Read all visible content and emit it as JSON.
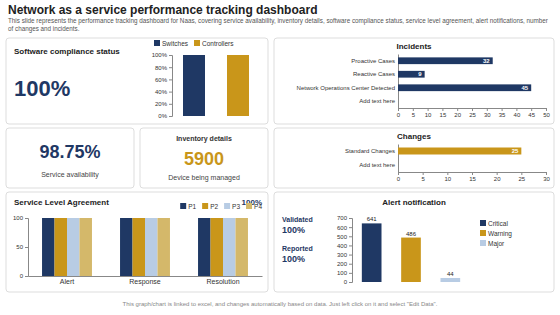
{
  "title": "Network as a service performance tracking dashboard",
  "subtitle": "This slide represents the performance tracking dashboard for Naas, covering service availability, inventory details, software compliance status, service level agreement, alert notifications, number of changes and incidents.",
  "annotations": [
    "This graph/chart is linked to excel, and changes automatically based on data. Just left click on it and select \"Edit Data\"."
  ],
  "chart_data": [
    {
      "type": "bar",
      "title": "Software compliance status",
      "annotations": [
        "100%"
      ],
      "categories": [
        "Switches",
        "Controllers"
      ],
      "values": [
        1.0,
        1.0
      ],
      "colors": [
        "#1f3864",
        "#c9961a"
      ],
      "ylim": [
        0,
        1.0
      ],
      "yticks": [
        {
          "value": 0,
          "label": "0%"
        },
        {
          "value": 0.2,
          "label": "20%"
        },
        {
          "value": 0.4,
          "label": "40%"
        },
        {
          "value": 0.6,
          "label": "60%"
        },
        {
          "value": 0.8,
          "label": "80%"
        },
        {
          "value": 1.0,
          "label": "100%"
        }
      ],
      "legend": "top-left",
      "tick_labels": "y"
    },
    {
      "type": "bar",
      "orientation": "horizontal",
      "title": "Incidents",
      "categories": [
        "Proactive Cases",
        "Reactive Cases",
        "Network Operations Center Detected",
        "Add text here"
      ],
      "values": [
        32,
        9,
        45,
        0
      ],
      "color": "#1f3864",
      "xlim": [
        0,
        50
      ],
      "xticks": [
        0,
        5,
        10,
        15,
        20,
        25,
        30,
        35,
        40,
        45,
        50
      ],
      "data_labels": true
    },
    {
      "type": "kpi",
      "title": "Service availability",
      "annotations": [
        "98.75%"
      ],
      "color": "#1f3864"
    },
    {
      "type": "kpi",
      "title": "Inventory details",
      "subtitle": "Device being managed",
      "annotations": [
        "5900"
      ],
      "color": "#c9961a"
    },
    {
      "type": "bar",
      "orientation": "horizontal",
      "title": "Changes",
      "categories": [
        "Standard Changes",
        "Add text here"
      ],
      "values": [
        25,
        0
      ],
      "color": "#c9961a",
      "xlim": [
        0,
        30
      ],
      "xticks": [
        0,
        5,
        10,
        15,
        20,
        25,
        30
      ],
      "data_labels": true
    },
    {
      "type": "bar",
      "title": "Service Level Agreement",
      "annotations": [
        "100%"
      ],
      "categories": [
        "Alert",
        "Response",
        "Resolution"
      ],
      "series": [
        {
          "name": "P1",
          "color": "#1f3864",
          "values": [
            100,
            100,
            100
          ]
        },
        {
          "name": "P2",
          "color": "#c9961a",
          "values": [
            100,
            100,
            100
          ]
        },
        {
          "name": "P3",
          "color": "#b8cce4",
          "values": [
            100,
            100,
            100
          ]
        },
        {
          "name": "P4",
          "color": "#d4b86a",
          "values": [
            100,
            100,
            100
          ]
        }
      ],
      "ylim": [
        0,
        100
      ],
      "yticks": [
        0,
        50,
        100
      ],
      "legend": "top-right"
    },
    {
      "type": "bar",
      "title": "Alert notification",
      "annotations": [
        "Validated",
        "100%",
        "Reported",
        "100%"
      ],
      "categories": [
        "Critical",
        "Warning",
        "Major"
      ],
      "values": [
        641,
        486,
        44
      ],
      "colors": [
        "#1f3864",
        "#c9961a",
        "#b8cce4"
      ],
      "ylim": [
        0,
        700
      ],
      "yticks": [
        0,
        100,
        200,
        300,
        400,
        500,
        600,
        700
      ],
      "data_labels": true,
      "legend": "right",
      "tick_labels": "y"
    }
  ]
}
